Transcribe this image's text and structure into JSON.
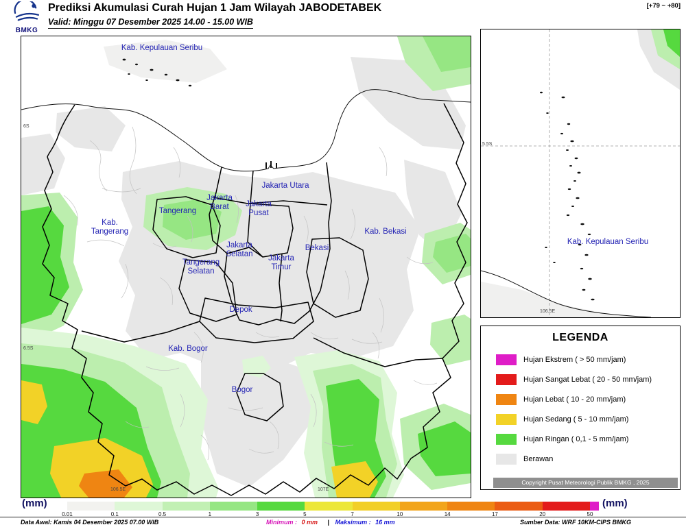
{
  "header": {
    "logo_text": "BMKG",
    "title": "Prediksi Akumulasi Curah Hujan 1 Jam Wilayah JABODETABEK",
    "valid": "Valid: Minggu 07 Desember 2025 14.00 - 15.00 WIB",
    "step_range": "[+79 ~ +80]"
  },
  "main_map": {
    "region_labels": {
      "kepulauan_seribu": "Kab. Kepulauan Seribu",
      "jakarta_utara": "Jakarta Utara",
      "jakarta_barat": "Jakarta Barat",
      "jakarta_pusat": "Jakarta Pusat",
      "tangerang": "Tangerang",
      "kab_tangerang": "Kab. Tangerang",
      "kab_bekasi": "Kab. Bekasi",
      "jakarta_selatan": "Jakarta Selatan",
      "bekasi": "Bekasi",
      "jakarta_timur": "Jakarta Timur",
      "tangerang_selatan": "Tangerang Selatan",
      "depok": "Depok",
      "kab_bogor": "Kab. Bogor",
      "bogor": "Bogor"
    },
    "axis": {
      "lat_top": "6S",
      "lat_bottom": "6.5S",
      "lon_left": "106.5E",
      "lon_right": "107E"
    }
  },
  "inset_map": {
    "label": "Kab. Kepulauan Seribu",
    "lat": "5.5S",
    "lon": "106.5E"
  },
  "legend": {
    "title": "LEGENDA",
    "items": [
      {
        "key": "ekstrem",
        "label": "Hujan Ekstrem ( > 50 mm/jam)",
        "color_key": "ekstrem"
      },
      {
        "key": "sangat-lebat",
        "label": "Hujan Sangat Lebat ( 20 - 50 mm/jam)",
        "color_key": "sangat_lebat"
      },
      {
        "key": "lebat",
        "label": "Hujan Lebat ( 10 - 20 mm/jam)",
        "color_key": "lebat"
      },
      {
        "key": "sedang",
        "label": "Hujan Sedang ( 5 - 10 mm/jam)",
        "color_key": "sedang"
      },
      {
        "key": "ringan",
        "label": "Hujan Ringan ( 0,1 - 5 mm/jam)",
        "color_key": "ringan"
      },
      {
        "key": "berawan",
        "label": "Berawan",
        "color_key": "berawan"
      }
    ],
    "copyright": "Copyright Pusat Meteorologi Publik BMKG , 2025"
  },
  "colorbar": {
    "unit_left": "(mm)",
    "unit_right": "(mm)",
    "ticks": [
      "0.01",
      "0.1",
      "0.5",
      "1",
      "3",
      "5",
      "7",
      "10",
      "14",
      "17",
      "20",
      "50"
    ],
    "segment_colors": [
      "#ffffff",
      "#f2f2ef",
      "#def7d7",
      "#c2f0b4",
      "#96e683",
      "#56d93f",
      "#ece73a",
      "#f2cf27",
      "#f2a51b",
      "#ef8512",
      "#eb5c13",
      "#e31b1b",
      "#df1dc7"
    ]
  },
  "footer": {
    "data_awal": "Data Awal: Kamis 04 Desember 2025 07.00 WIB",
    "minimum_label": "Minimum :",
    "minimum_value": "0 mm",
    "separator": "|",
    "maksimum_label": "Maksimum :",
    "maksimum_value": "16 mm",
    "source": "Sumber Data: WRF 10KM-CIPS BMKG"
  },
  "palette": {
    "ekstrem": "#df1dc7",
    "sangat_lebat": "#e31b1b",
    "lebat": "#ef8512",
    "sedang": "#f2d227",
    "ringan": "#56d93f",
    "ringan_mid": "#96e683",
    "ringan_light": "#bceeae",
    "ringan_pale": "#def7d7",
    "berawan": "#e7e7e7",
    "berawan_light": "#f0f0ef",
    "label_blue": "#2424b4",
    "navy": "#10107a",
    "minimum": "#d613b8",
    "minimum_value": "#d61313",
    "maksimum": "#1616d6"
  }
}
